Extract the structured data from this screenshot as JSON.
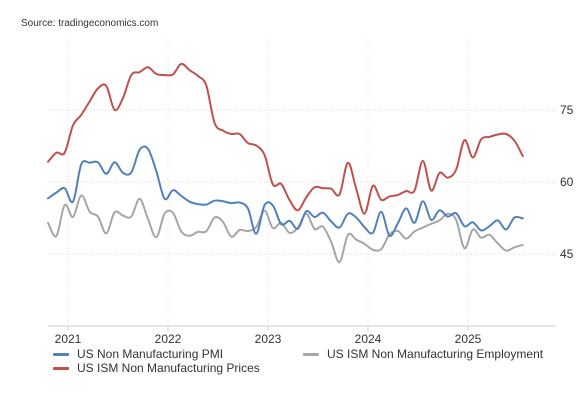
{
  "source": "Source: tradingeconomics.com",
  "chart_data": {
    "type": "line",
    "ylim": [
      30,
      90
    ],
    "yticks": [
      45,
      60,
      75
    ],
    "xlim": [
      2020.8,
      2025.88
    ],
    "xticks": [
      {
        "value": 2021,
        "label": "2021"
      },
      {
        "value": 2022,
        "label": "2022"
      },
      {
        "value": 2023,
        "label": "2023"
      },
      {
        "value": 2024,
        "label": "2024"
      },
      {
        "value": 2025,
        "label": "2025"
      }
    ],
    "grid": true,
    "legend_position": "bottom",
    "x_start": 2020.8,
    "x_step": 0.0833,
    "series": [
      {
        "name": "US Non Manufacturing PMI",
        "color": "#4f81bd",
        "values": [
          56.6,
          57.8,
          58.7,
          55.9,
          63.7,
          64.0,
          64.1,
          61.7,
          64.1,
          61.9,
          62.0,
          66.7,
          66.9,
          62.3,
          56.5,
          58.3,
          57.1,
          55.9,
          55.4,
          55.3,
          56.1,
          56.0,
          55.6,
          55.7,
          54.5,
          49.2,
          55.2,
          55.1,
          51.2,
          51.9,
          50.3,
          53.9,
          52.7,
          53.6,
          51.8,
          50.5,
          53.4,
          52.6,
          50.6,
          49.4,
          53.8,
          48.8,
          51.4,
          54.5,
          51.5,
          56.0,
          52.1,
          54.1,
          52.8,
          53.5,
          50.8,
          51.6,
          49.9,
          50.8,
          52.0,
          50.1,
          52.6,
          52.4
        ],
        "ids": "pmi"
      },
      {
        "name": "US ISM Non Manufacturing Prices",
        "color": "#c0504d",
        "values": [
          64.2,
          66.1,
          66.1,
          71.8,
          74.0,
          76.8,
          79.5,
          80.0,
          75.0,
          77.5,
          82.3,
          82.9,
          83.9,
          82.5,
          82.3,
          82.4,
          84.6,
          83.3,
          82.1,
          80.1,
          72.3,
          70.7,
          70.0,
          70.0,
          68.1,
          67.6,
          65.6,
          59.5,
          59.6,
          56.2,
          54.1,
          56.8,
          58.9,
          58.7,
          58.6,
          57.4,
          64.0,
          58.6,
          53.4,
          59.2,
          56.3,
          57.0,
          57.3,
          58.1,
          58.2,
          64.4,
          58.2,
          61.9,
          60.9,
          62.6,
          68.7,
          65.1,
          68.9,
          69.4,
          69.9,
          70.0,
          68.6,
          65.4
        ],
        "ids": "prices"
      },
      {
        "name": "US ISM Non Manufacturing Employment",
        "color": "#a6a6a6",
        "values": [
          51.5,
          48.7,
          55.2,
          52.7,
          57.2,
          53.8,
          52.8,
          49.3,
          53.7,
          53.0,
          52.8,
          56.5,
          52.3,
          48.5,
          53.4,
          53.6,
          49.7,
          48.8,
          49.6,
          49.7,
          52.6,
          51.7,
          48.6,
          50.0,
          49.8,
          50.6,
          54.0,
          50.4,
          51.5,
          49.4,
          50.5,
          53.4,
          50.2,
          50.7,
          47.5,
          43.3,
          49.0,
          48.0,
          47.1,
          45.9,
          46.0,
          49.1,
          49.8,
          48.2,
          49.7,
          50.5,
          51.3,
          52.0,
          53.4,
          52.1,
          46.2,
          50.1,
          48.4,
          49.0,
          47.2,
          45.7,
          46.4,
          46.9
        ]
      }
    ]
  },
  "legend": {
    "pmi": "US Non Manufacturing PMI",
    "prices": "US ISM Non Manufacturing Prices",
    "employment": "US ISM Non Manufacturing Employment"
  }
}
